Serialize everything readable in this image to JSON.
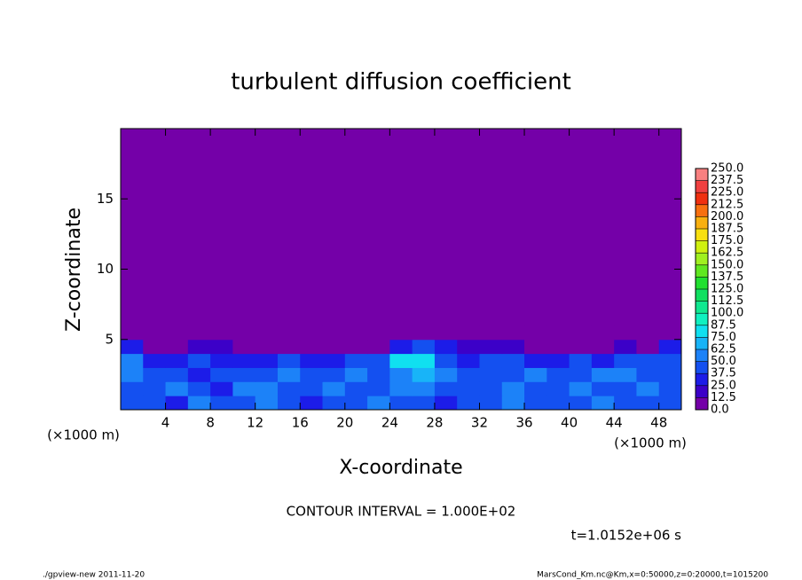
{
  "chart_data": {
    "type": "contour",
    "title": "turbulent diffusion coefficient",
    "x_label": "X-coordinate",
    "y_label": "Z-coordinate",
    "x_unit": "(×1000 m)",
    "y_unit": "(×1000 m)",
    "contour_interval": "CONTOUR INTERVAL = 1.000E+02",
    "time_label": "t=1.0152e+06 s",
    "footer_left": "./gpview-new  2011-11-20",
    "footer_right": "MarsCond_Km.nc@Km,x=0:50000,z=0:20000,t=1015200",
    "xlim": [
      0,
      50
    ],
    "ylim": [
      0,
      20
    ],
    "xticks": [
      4,
      8,
      12,
      16,
      20,
      24,
      28,
      32,
      36,
      40,
      44,
      48
    ],
    "yticks": [
      5,
      10,
      15
    ],
    "background_color": "#7400a8",
    "field": {
      "x": [
        1,
        3,
        5,
        7,
        9,
        11,
        13,
        15,
        17,
        19,
        21,
        23,
        25,
        27,
        29,
        31,
        33,
        35,
        37,
        39,
        41,
        43,
        45,
        47,
        49
      ],
      "z": [
        0.5,
        1.5,
        2.5,
        3.5,
        4.5,
        5.5
      ],
      "values": [
        [
          45,
          40,
          35,
          50,
          40,
          45,
          55,
          40,
          35,
          40,
          45,
          50,
          45,
          40,
          35,
          45,
          40,
          50,
          45,
          40,
          45,
          50,
          40,
          45,
          40
        ],
        [
          40,
          45,
          50,
          45,
          35,
          60,
          50,
          45,
          40,
          50,
          45,
          40,
          55,
          60,
          45,
          40,
          45,
          50,
          40,
          45,
          55,
          45,
          40,
          50,
          45
        ],
        [
          50,
          40,
          45,
          35,
          40,
          45,
          40,
          50,
          45,
          40,
          55,
          45,
          60,
          70,
          50,
          45,
          40,
          45,
          50,
          40,
          45,
          50,
          55,
          40,
          45
        ],
        [
          60,
          35,
          30,
          40,
          25,
          35,
          30,
          40,
          35,
          30,
          40,
          45,
          75,
          85,
          40,
          35,
          45,
          40,
          30,
          35,
          40,
          35,
          45,
          40,
          45
        ],
        [
          30,
          10,
          5,
          20,
          15,
          10,
          0,
          5,
          0,
          5,
          0,
          10,
          30,
          40,
          25,
          20,
          15,
          20,
          10,
          5,
          0,
          5,
          20,
          10,
          25
        ],
        [
          0,
          0,
          0,
          0,
          0,
          0,
          0,
          0,
          0,
          0,
          0,
          0,
          0,
          10,
          0,
          0,
          0,
          0,
          0,
          0,
          5,
          0,
          0,
          0,
          0
        ]
      ]
    },
    "levels": [
      {
        "value": 0,
        "label": "0.0"
      },
      {
        "value": 12.5,
        "label": "12.5"
      },
      {
        "value": 25,
        "label": "25.0"
      },
      {
        "value": 37.5,
        "label": "37.5"
      },
      {
        "value": 50,
        "label": "50.0"
      },
      {
        "value": 62.5,
        "label": "62.5"
      },
      {
        "value": 75,
        "label": "75.0"
      },
      {
        "value": 87.5,
        "label": "87.5"
      },
      {
        "value": 100,
        "label": "100.0"
      },
      {
        "value": 112.5,
        "label": "112.5"
      },
      {
        "value": 125,
        "label": "125.0"
      },
      {
        "value": 137.5,
        "label": "137.5"
      },
      {
        "value": 150,
        "label": "150.0"
      },
      {
        "value": 162.5,
        "label": "162.5"
      },
      {
        "value": 175,
        "label": "175.0"
      },
      {
        "value": 187.5,
        "label": "187.5"
      },
      {
        "value": 200,
        "label": "200.0"
      },
      {
        "value": 212.5,
        "label": "212.5"
      },
      {
        "value": 225,
        "label": "225.0"
      },
      {
        "value": 237.5,
        "label": "237.5"
      },
      {
        "value": 250,
        "label": "250.0"
      }
    ],
    "level_colors": [
      "#7400a8",
      "#3c00c8",
      "#1c1ce8",
      "#1450f0",
      "#1c82f8",
      "#18b4f8",
      "#10e0f0",
      "#10f0c0",
      "#10e890",
      "#10e060",
      "#20e030",
      "#60e820",
      "#a0f020",
      "#d0f010",
      "#f8e010",
      "#f8b010",
      "#f87010",
      "#f03010",
      "#f04040",
      "#f88080"
    ]
  }
}
